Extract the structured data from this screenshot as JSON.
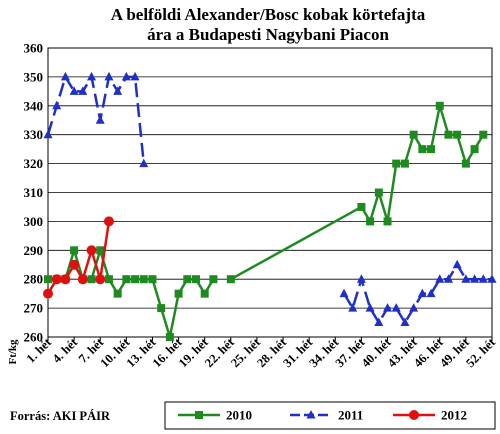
{
  "chart_data": {
    "type": "line",
    "title_lines": [
      "A belföldi Alexander/Bosc kobak körtefajta",
      "ára a Budapesti Nagybani Piacon"
    ],
    "ylabel": "Ft/kg",
    "source": "Forrás: AKI PÁIR",
    "ylim": [
      260,
      360
    ],
    "yticks": [
      260,
      270,
      280,
      290,
      300,
      310,
      320,
      330,
      340,
      350,
      360
    ],
    "x_weeks": [
      1,
      52
    ],
    "xtick_weeks": [
      1,
      4,
      7,
      10,
      13,
      16,
      19,
      22,
      25,
      28,
      31,
      34,
      37,
      40,
      43,
      46,
      49,
      52
    ],
    "xtick_labels": [
      "1. hét",
      "4. hét",
      "7. hét",
      "10. hét",
      "13. hét",
      "16. hét",
      "19. hét",
      "22. hét",
      "25. hét",
      "28. hét",
      "31. hét",
      "34. hét",
      "37. hét",
      "40. hét",
      "43. hét",
      "46. hét",
      "49. hét",
      "52. hét"
    ],
    "grid": true,
    "legend_position": "bottom",
    "series": [
      {
        "name": "2010",
        "color": "#1f8a1f",
        "marker": "square",
        "dash": "solid",
        "points": [
          [
            1,
            280
          ],
          [
            2,
            280
          ],
          [
            3,
            280
          ],
          [
            4,
            290
          ],
          [
            5,
            280
          ],
          [
            6,
            280
          ],
          [
            7,
            290
          ],
          [
            8,
            280
          ],
          [
            9,
            275
          ],
          [
            10,
            280
          ],
          [
            11,
            280
          ],
          [
            12,
            280
          ],
          [
            13,
            280
          ],
          [
            14,
            270
          ],
          [
            15,
            260
          ],
          [
            16,
            275
          ],
          [
            17,
            280
          ],
          [
            18,
            280
          ],
          [
            19,
            275
          ],
          [
            20,
            280
          ],
          [
            22,
            280
          ],
          [
            37,
            305
          ],
          [
            38,
            300
          ],
          [
            39,
            310
          ],
          [
            40,
            300
          ],
          [
            41,
            320
          ],
          [
            42,
            320
          ],
          [
            43,
            330
          ],
          [
            44,
            325
          ],
          [
            45,
            325
          ],
          [
            46,
            340
          ],
          [
            47,
            330
          ],
          [
            48,
            330
          ],
          [
            49,
            320
          ],
          [
            50,
            325
          ],
          [
            51,
            330
          ]
        ],
        "breaks_after": [
          20
        ]
      },
      {
        "name": "2011",
        "color": "#1f2fc8",
        "marker": "triangle",
        "dash": "long-dash",
        "points": [
          [
            1,
            330
          ],
          [
            2,
            340
          ],
          [
            3,
            350
          ],
          [
            4,
            345
          ],
          [
            5,
            345
          ],
          [
            6,
            350
          ],
          [
            7,
            335
          ],
          [
            8,
            350
          ],
          [
            9,
            345
          ],
          [
            10,
            350
          ],
          [
            11,
            350
          ],
          [
            12,
            320
          ],
          [
            35,
            275
          ],
          [
            36,
            270
          ],
          [
            37,
            280
          ],
          [
            38,
            270
          ],
          [
            39,
            265
          ],
          [
            40,
            270
          ],
          [
            41,
            270
          ],
          [
            42,
            265
          ],
          [
            43,
            270
          ],
          [
            44,
            275
          ],
          [
            45,
            275
          ],
          [
            46,
            280
          ],
          [
            47,
            280
          ],
          [
            48,
            285
          ],
          [
            49,
            280
          ],
          [
            50,
            280
          ],
          [
            51,
            280
          ],
          [
            52,
            280
          ]
        ],
        "breaks_after": [
          12
        ]
      },
      {
        "name": "2012",
        "color": "#e01010",
        "marker": "circle",
        "dash": "solid",
        "points": [
          [
            1,
            275
          ],
          [
            2,
            280
          ],
          [
            3,
            280
          ],
          [
            4,
            285
          ],
          [
            5,
            280
          ],
          [
            6,
            290
          ],
          [
            7,
            280
          ],
          [
            8,
            300
          ]
        ],
        "breaks_after": []
      }
    ]
  }
}
